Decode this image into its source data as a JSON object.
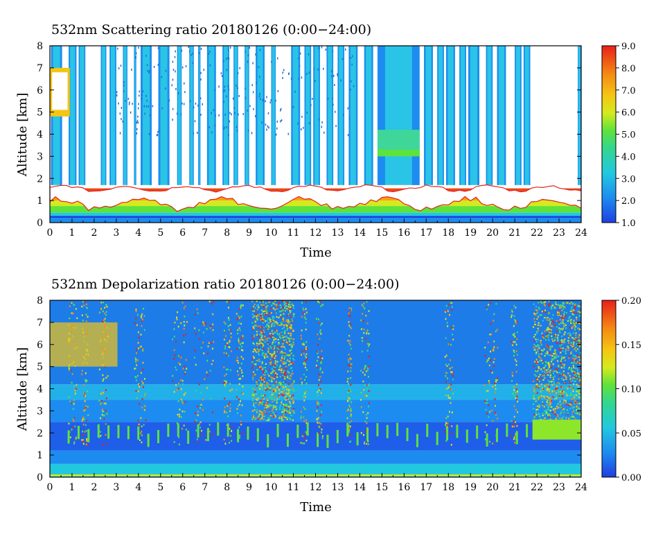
{
  "chart_data": [
    {
      "type": "heatmap",
      "title": "532nm Scattering ratio  20180126 (0:00−24:00)",
      "xlabel": "Time",
      "ylabel": "Altitude [km]",
      "xlim": [
        0,
        24
      ],
      "ylim": [
        0,
        8
      ],
      "x_ticks": [
        "0",
        "1",
        "2",
        "3",
        "4",
        "5",
        "6",
        "7",
        "8",
        "9",
        "10",
        "11",
        "12",
        "13",
        "14",
        "15",
        "16",
        "17",
        "18",
        "19",
        "20",
        "21",
        "22",
        "23",
        "24"
      ],
      "y_ticks": [
        "0",
        "1",
        "2",
        "3",
        "4",
        "5",
        "6",
        "7",
        "8"
      ],
      "colorbar": {
        "min": 1.0,
        "max": 9.0,
        "ticks": [
          "1.0",
          "2.0",
          "3.0",
          "4.0",
          "5.0",
          "6.0",
          "7.0",
          "8.0",
          "9.0"
        ]
      },
      "features": {
        "boundary_layer_km": [
          0.3,
          1.6
        ],
        "saturated_cloud_top_km": 1.7,
        "aerosol_columns_hours": [
          [
            0.05,
            0.55
          ],
          [
            0.85,
            1.2
          ],
          [
            1.3,
            1.6
          ],
          [
            2.3,
            2.55
          ],
          [
            2.7,
            3.0
          ],
          [
            3.3,
            3.5
          ],
          [
            3.8,
            3.9
          ],
          [
            4.1,
            4.6
          ],
          [
            4.9,
            5.4
          ],
          [
            5.75,
            5.95
          ],
          [
            6.3,
            6.5
          ],
          [
            6.7,
            6.8
          ],
          [
            7.1,
            7.5
          ],
          [
            7.8,
            8.1
          ],
          [
            8.3,
            8.5
          ],
          [
            8.8,
            9.0
          ],
          [
            9.3,
            9.7
          ],
          [
            10.0,
            10.2
          ],
          [
            10.9,
            11.3
          ],
          [
            11.5,
            11.8
          ],
          [
            11.9,
            12.2
          ],
          [
            12.5,
            12.8
          ],
          [
            13.0,
            13.3
          ],
          [
            13.5,
            13.9
          ],
          [
            14.2,
            14.6
          ],
          [
            14.8,
            16.7
          ],
          [
            16.9,
            17.3
          ],
          [
            17.5,
            17.8
          ],
          [
            17.9,
            18.3
          ],
          [
            18.5,
            18.8
          ],
          [
            18.9,
            19.4
          ],
          [
            19.7,
            20.0
          ],
          [
            20.2,
            20.6
          ],
          [
            21.0,
            21.3
          ],
          [
            21.4,
            21.7
          ],
          [
            23.85,
            24.0
          ]
        ],
        "low_cloud_hours": [
          0.0,
          0.9
        ],
        "low_cloud_km": [
          4.8,
          7.0
        ]
      }
    },
    {
      "type": "heatmap",
      "title": "532nm Depolarization ratio  20180126 (0:00−24:00)",
      "xlabel": "Time",
      "ylabel": "Altitude [km]",
      "xlim": [
        0,
        24
      ],
      "ylim": [
        0,
        8
      ],
      "x_ticks": [
        "0",
        "1",
        "2",
        "3",
        "4",
        "5",
        "6",
        "7",
        "8",
        "9",
        "10",
        "11",
        "12",
        "13",
        "14",
        "15",
        "16",
        "17",
        "18",
        "19",
        "20",
        "21",
        "22",
        "23",
        "24"
      ],
      "y_ticks": [
        "0",
        "1",
        "2",
        "3",
        "4",
        "5",
        "6",
        "7",
        "8"
      ],
      "colorbar": {
        "min": 0.0,
        "max": 0.2,
        "ticks": [
          "0.00",
          "0.05",
          "0.10",
          "0.15",
          "0.20"
        ]
      },
      "features": {
        "noisy_high_depol_hours": [
          [
            9.1,
            11.0
          ],
          [
            21.8,
            24.0
          ]
        ],
        "dust_layer_hours": [
          21.8,
          24.0
        ],
        "dust_layer_km": [
          1.7,
          2.6
        ]
      }
    }
  ]
}
